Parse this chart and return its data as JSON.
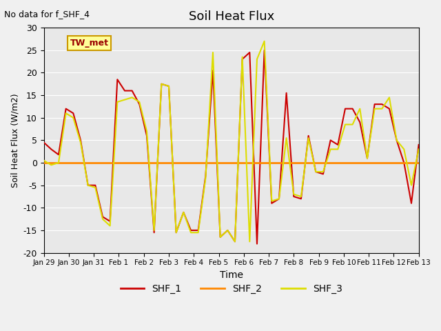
{
  "title": "Soil Heat Flux",
  "note": "No data for f_SHF_4",
  "ylabel": "Soil Heat Flux (W/m2)",
  "xlabel": "Time",
  "ylim": [
    -20,
    30
  ],
  "yticks": [
    -20,
    -15,
    -10,
    -5,
    0,
    5,
    10,
    15,
    20,
    25,
    30
  ],
  "background_color": "#e8e8e8",
  "legend_box_label": "TW_met",
  "legend_box_color": "#ffff99",
  "legend_box_border": "#cc9900",
  "x_tick_labels": [
    "Jan 29",
    "Jan 30",
    "Jan 31",
    "Feb 1",
    "Feb 2",
    "Feb 3",
    "Feb 4",
    "Feb 5",
    "Feb 6",
    "Feb 7",
    "Feb 8",
    "Feb 9",
    "Feb 10",
    "Feb 11",
    "Feb 12",
    "Feb 13"
  ],
  "colors": {
    "SHF_1": "#cc0000",
    "SHF_2": "#ff8800",
    "SHF_3": "#dddd00"
  },
  "line_widths": {
    "SHF_1": 1.5,
    "SHF_2": 2.0,
    "SHF_3": 1.5
  },
  "SHF_1": [
    4.5,
    3.0,
    1.8,
    12.0,
    11.0,
    5.0,
    -5.0,
    -5.0,
    -12.0,
    -13.0,
    18.5,
    16.0,
    16.0,
    13.0,
    6.0,
    -15.5,
    17.5,
    17.0,
    -15.5,
    -11.0,
    -15.0,
    -15.0,
    -3.0,
    20.5,
    -16.5,
    -15.0,
    -17.5,
    23.0,
    24.5,
    -18.0,
    25.0,
    -9.0,
    -8.0,
    15.5,
    -7.5,
    -8.0,
    6.0,
    -2.0,
    -2.5,
    5.0,
    4.0,
    12.0,
    12.0,
    9.0,
    1.0,
    13.0,
    13.0,
    12.0,
    5.0,
    0.0,
    -9.0,
    4.0
  ],
  "SHF_2": [
    0.0,
    0.0,
    0.0,
    0.0,
    0.0,
    0.0,
    0.0,
    0.0,
    0.0,
    0.0,
    0.0,
    0.0,
    0.0,
    0.0,
    0.0,
    0.0,
    0.0,
    0.0,
    0.0,
    0.0,
    0.0,
    0.0,
    0.0,
    0.0,
    0.0,
    0.0,
    0.0,
    0.0,
    0.0,
    0.0,
    0.0,
    0.0,
    0.0,
    0.0,
    0.0,
    0.0,
    0.0,
    0.0,
    0.0,
    0.0,
    0.0,
    0.0,
    0.0,
    0.0,
    0.0,
    0.0,
    0.0,
    0.0,
    0.0,
    0.0,
    0.0,
    0.0
  ],
  "SHF_3": [
    0.5,
    -0.5,
    0.0,
    11.0,
    10.0,
    4.5,
    -5.0,
    -5.5,
    -12.5,
    -14.0,
    13.5,
    14.0,
    14.5,
    13.5,
    7.0,
    -15.0,
    17.5,
    17.0,
    -15.5,
    -11.0,
    -15.5,
    -15.5,
    -3.5,
    24.5,
    -16.5,
    -15.0,
    -17.5,
    23.5,
    -17.5,
    23.0,
    27.0,
    -8.5,
    -8.0,
    5.5,
    -7.0,
    -7.5,
    5.5,
    -2.0,
    -2.0,
    3.0,
    3.0,
    8.5,
    8.5,
    12.0,
    1.0,
    12.0,
    12.0,
    14.5,
    5.0,
    3.0,
    -5.0,
    3.0
  ]
}
